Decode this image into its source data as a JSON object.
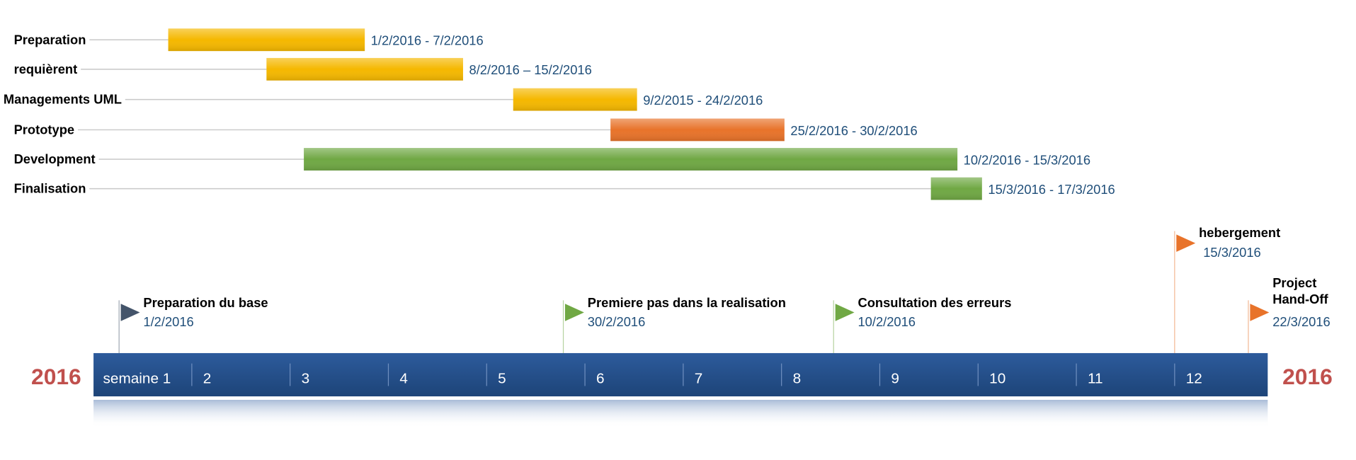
{
  "chart_data": {
    "type": "gantt",
    "tasks": [
      {
        "name": "Preparation",
        "start_week": 1.76,
        "end_week": 3.76,
        "dates": "1/2/2016 - 7/2/2016",
        "color": "#f5b800"
      },
      {
        "name": "requièrent",
        "start_week": 2.76,
        "end_week": 4.76,
        "dates": "8/2/2016 – 15/2/2016",
        "color": "#f5b800"
      },
      {
        "name": "Managements UML",
        "start_week": 5.27,
        "end_week": 6.53,
        "dates": "9/2/2015 - 24/2/2016",
        "color": "#f5b800"
      },
      {
        "name": "Prototype",
        "start_week": 6.26,
        "end_week": 8.03,
        "dates": "25/2/2016 - 30/2/2016",
        "color": "#e8732a"
      },
      {
        "name": "Development",
        "start_week": 3.14,
        "end_week": 9.79,
        "dates": "10/2/2016 - 15/3/2016",
        "color": "#70a844"
      },
      {
        "name": "Finalisation",
        "start_week": 9.52,
        "end_week": 10.04,
        "dates": "15/3/2016 - 17/3/2016",
        "color": "#70a844"
      }
    ],
    "milestones": [
      {
        "title": "Preparation du base",
        "date": "1/2/2016",
        "week": 1.26,
        "color": "#44546a",
        "tier": "low"
      },
      {
        "title": "Premiere pas dans la realisation",
        "date": "30/2/2016",
        "week": 5.78,
        "color": "#70a844",
        "tier": "low"
      },
      {
        "title": "Consultation des  erreurs",
        "date": "10/2/2016",
        "week": 8.53,
        "color": "#70a844",
        "tier": "low"
      },
      {
        "title": "hebergement",
        "date": "15/3/2016",
        "week": 12.0,
        "color": "#e8732a",
        "tier": "high"
      },
      {
        "title": "Project\nHand-Off",
        "date": "22/3/2016",
        "week": 12.75,
        "color": "#e8732a",
        "tier": "low"
      }
    ],
    "axis": {
      "weeks": [
        "semaine  1",
        "2",
        "3",
        "4",
        "5",
        "6",
        "7",
        "8",
        "9",
        "10",
        "11",
        "12"
      ],
      "year_left": "2016",
      "year_right": "2016",
      "band_color": "#24518f"
    }
  }
}
